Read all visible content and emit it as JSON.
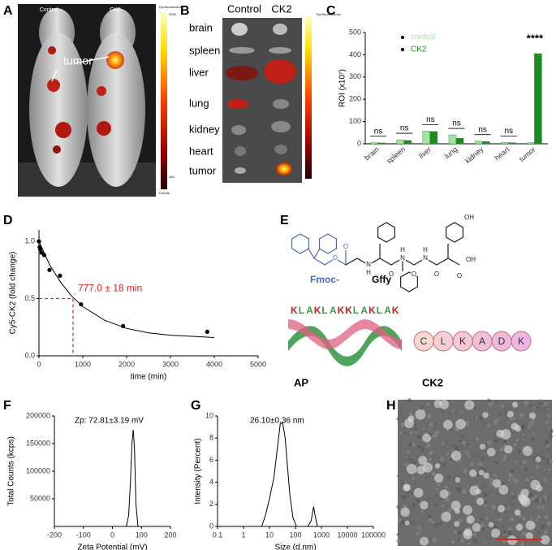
{
  "panel_labels": [
    "A",
    "B",
    "C",
    "D",
    "E",
    "F",
    "G",
    "H"
  ],
  "panel_a": {
    "control": "Control",
    "ck2": "CK2",
    "tumor": "tumor",
    "colorbar": {
      "title": "Epi-fluorescence",
      "max": "2000",
      "min": "300",
      "unit": "Counts"
    }
  },
  "panel_b": {
    "columns": [
      "Control",
      "CK2"
    ],
    "organs": [
      "brain",
      "spleen",
      "liver",
      "lung",
      "kidney",
      "heart",
      "tumor"
    ],
    "colorbar_title": "Epi-fluorescence"
  },
  "panel_e": {
    "fmoc": "Fmoc-",
    "gffy": "Gffy",
    "atoms": [
      "O",
      "O",
      "N",
      "H",
      "O",
      "N",
      "H",
      "O",
      "N",
      "H",
      "O",
      "O",
      "OH",
      "OH"
    ],
    "sequence": [
      "K",
      "L",
      "A",
      "K",
      "L",
      "A",
      "K",
      "K",
      "L",
      "A",
      "K",
      "L",
      "A",
      "K"
    ],
    "ap": "AP",
    "ck2": "CK2",
    "ck2_residues": [
      "C",
      "L",
      "K",
      "A",
      "D",
      "K"
    ]
  },
  "chart_data": [
    {
      "type": "bar",
      "ylabel": "ROI (x10⁷)",
      "categories": [
        "brain",
        "spleen",
        "liver",
        "lung",
        "kidney",
        "heart",
        "tumor"
      ],
      "series": [
        {
          "name": "control",
          "color": "#9de89d",
          "values": [
            5,
            18,
            57,
            40,
            12,
            6,
            5
          ]
        },
        {
          "name": "CK2",
          "color": "#1e8c1e",
          "values": [
            4,
            15,
            55,
            25,
            10,
            5,
            405
          ]
        }
      ],
      "ylim": [
        0,
        500
      ],
      "yticks": [
        0,
        100,
        200,
        300,
        400,
        500
      ],
      "legend": "upper-left",
      "annotations": [
        {
          "text": "ns",
          "category": "brain"
        },
        {
          "text": "ns",
          "category": "spleen"
        },
        {
          "text": "ns",
          "category": "liver"
        },
        {
          "text": "ns",
          "category": "lung"
        },
        {
          "text": "ns",
          "category": "kidney"
        },
        {
          "text": "ns",
          "category": "heart"
        },
        {
          "text": "****",
          "category": "tumor"
        }
      ]
    },
    {
      "type": "scatter",
      "xlabel": "time (min)",
      "ylabel": "Cy5-CK2 (fold change)",
      "x": [
        0,
        15,
        30,
        60,
        120,
        240,
        480,
        960,
        1920,
        3840
      ],
      "values": [
        1.0,
        0.95,
        0.93,
        0.9,
        0.88,
        0.75,
        0.7,
        0.45,
        0.26,
        0.21
      ],
      "color": "#000000",
      "curve": {
        "x": [
          0,
          250,
          500,
          750,
          1000,
          1500,
          2000,
          2500,
          3000,
          3500,
          4000
        ],
        "values": [
          1.0,
          0.79,
          0.64,
          0.52,
          0.43,
          0.31,
          0.24,
          0.2,
          0.18,
          0.17,
          0.16
        ]
      },
      "half_life": {
        "x": 777,
        "y": 0.5,
        "label": "777.0 ± 18 min",
        "color": "#e02020"
      },
      "xlim": [
        0,
        5000
      ],
      "xticks": [
        0,
        1000,
        2000,
        3000,
        4000,
        5000
      ],
      "ylim": [
        0,
        1.1
      ],
      "yticks": [
        {
          "value": 0,
          "label": "0.0"
        },
        0.5,
        {
          "value": 1,
          "label": "1.0"
        }
      ]
    },
    {
      "type": "line",
      "xlabel": "Zeta Potential (mV)",
      "ylabel": "Total Counts (kcps)",
      "annotation": "Zp: 72.81±3.19 mV",
      "x": [
        48,
        56,
        62,
        67,
        72,
        76,
        81,
        88
      ],
      "values": [
        0,
        20000,
        80000,
        150000,
        175000,
        140000,
        40000,
        0
      ],
      "xlim": [
        -200,
        200
      ],
      "xticks": [
        -200,
        -100,
        0,
        100,
        200
      ],
      "ylim": [
        0,
        200000
      ],
      "yticks": [
        50000,
        100000,
        150000,
        200000
      ]
    },
    {
      "type": "line",
      "xlabel": "Size (d.nm)",
      "ylabel": "Intensity (Percent)",
      "annotation": "26.10±0.36 nm",
      "xlog": true,
      "x": [
        5,
        7,
        10,
        15,
        20,
        26,
        32,
        40,
        60,
        80,
        110,
        200,
        300,
        400,
        500,
        560,
        700
      ],
      "values": [
        0,
        1,
        2.5,
        4.5,
        7,
        9.3,
        9.4,
        8,
        3,
        0.8,
        0,
        null,
        0,
        0.5,
        1.8,
        1.1,
        0
      ],
      "xlim": [
        0.1,
        100000
      ],
      "xticks": [
        0.1,
        1,
        10,
        100,
        1000,
        10000,
        100000
      ],
      "ylim": [
        0,
        10
      ],
      "yticks": [
        0,
        2,
        4,
        6,
        8,
        10
      ]
    }
  ]
}
